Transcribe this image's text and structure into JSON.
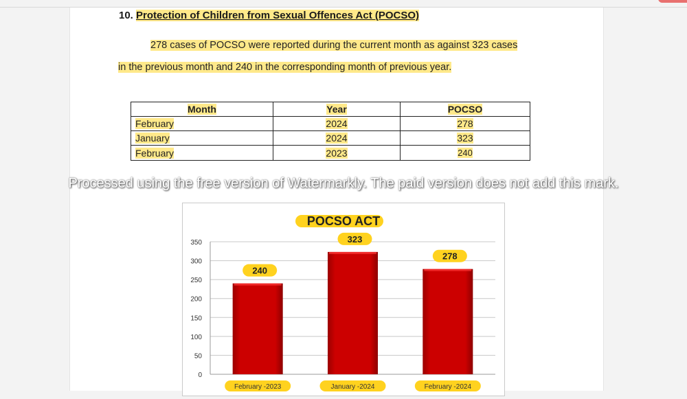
{
  "section": {
    "number": "10.",
    "title": "Protection of Children from Sexual Offences Act (POCSO)"
  },
  "paragraph": {
    "line1": "278 cases of POCSO were reported during the current month as against 323 cases",
    "line2": "in the previous month and 240 in the corresponding month of previous year."
  },
  "table": {
    "headers": [
      "Month",
      "Year",
      "POCSO"
    ],
    "rows": [
      [
        "February",
        "2024",
        "278"
      ],
      [
        "January",
        "2024",
        "323"
      ],
      [
        "February",
        "2023",
        "240"
      ]
    ]
  },
  "chart_data": {
    "type": "bar",
    "title": "POCSO ACT",
    "categories": [
      "February -2023",
      "January -2024",
      "February -2024"
    ],
    "values": [
      240,
      323,
      278
    ],
    "ylim": [
      0,
      350
    ],
    "yticks": [
      0,
      50,
      100,
      150,
      200,
      250,
      300,
      350
    ],
    "xlabel": "",
    "ylabel": "",
    "grid": true,
    "bar_color": "#cc0000",
    "label_bg": "#ffd21f"
  },
  "watermark": "Processed using the free version of Watermarkly. The paid version does not add this mark."
}
